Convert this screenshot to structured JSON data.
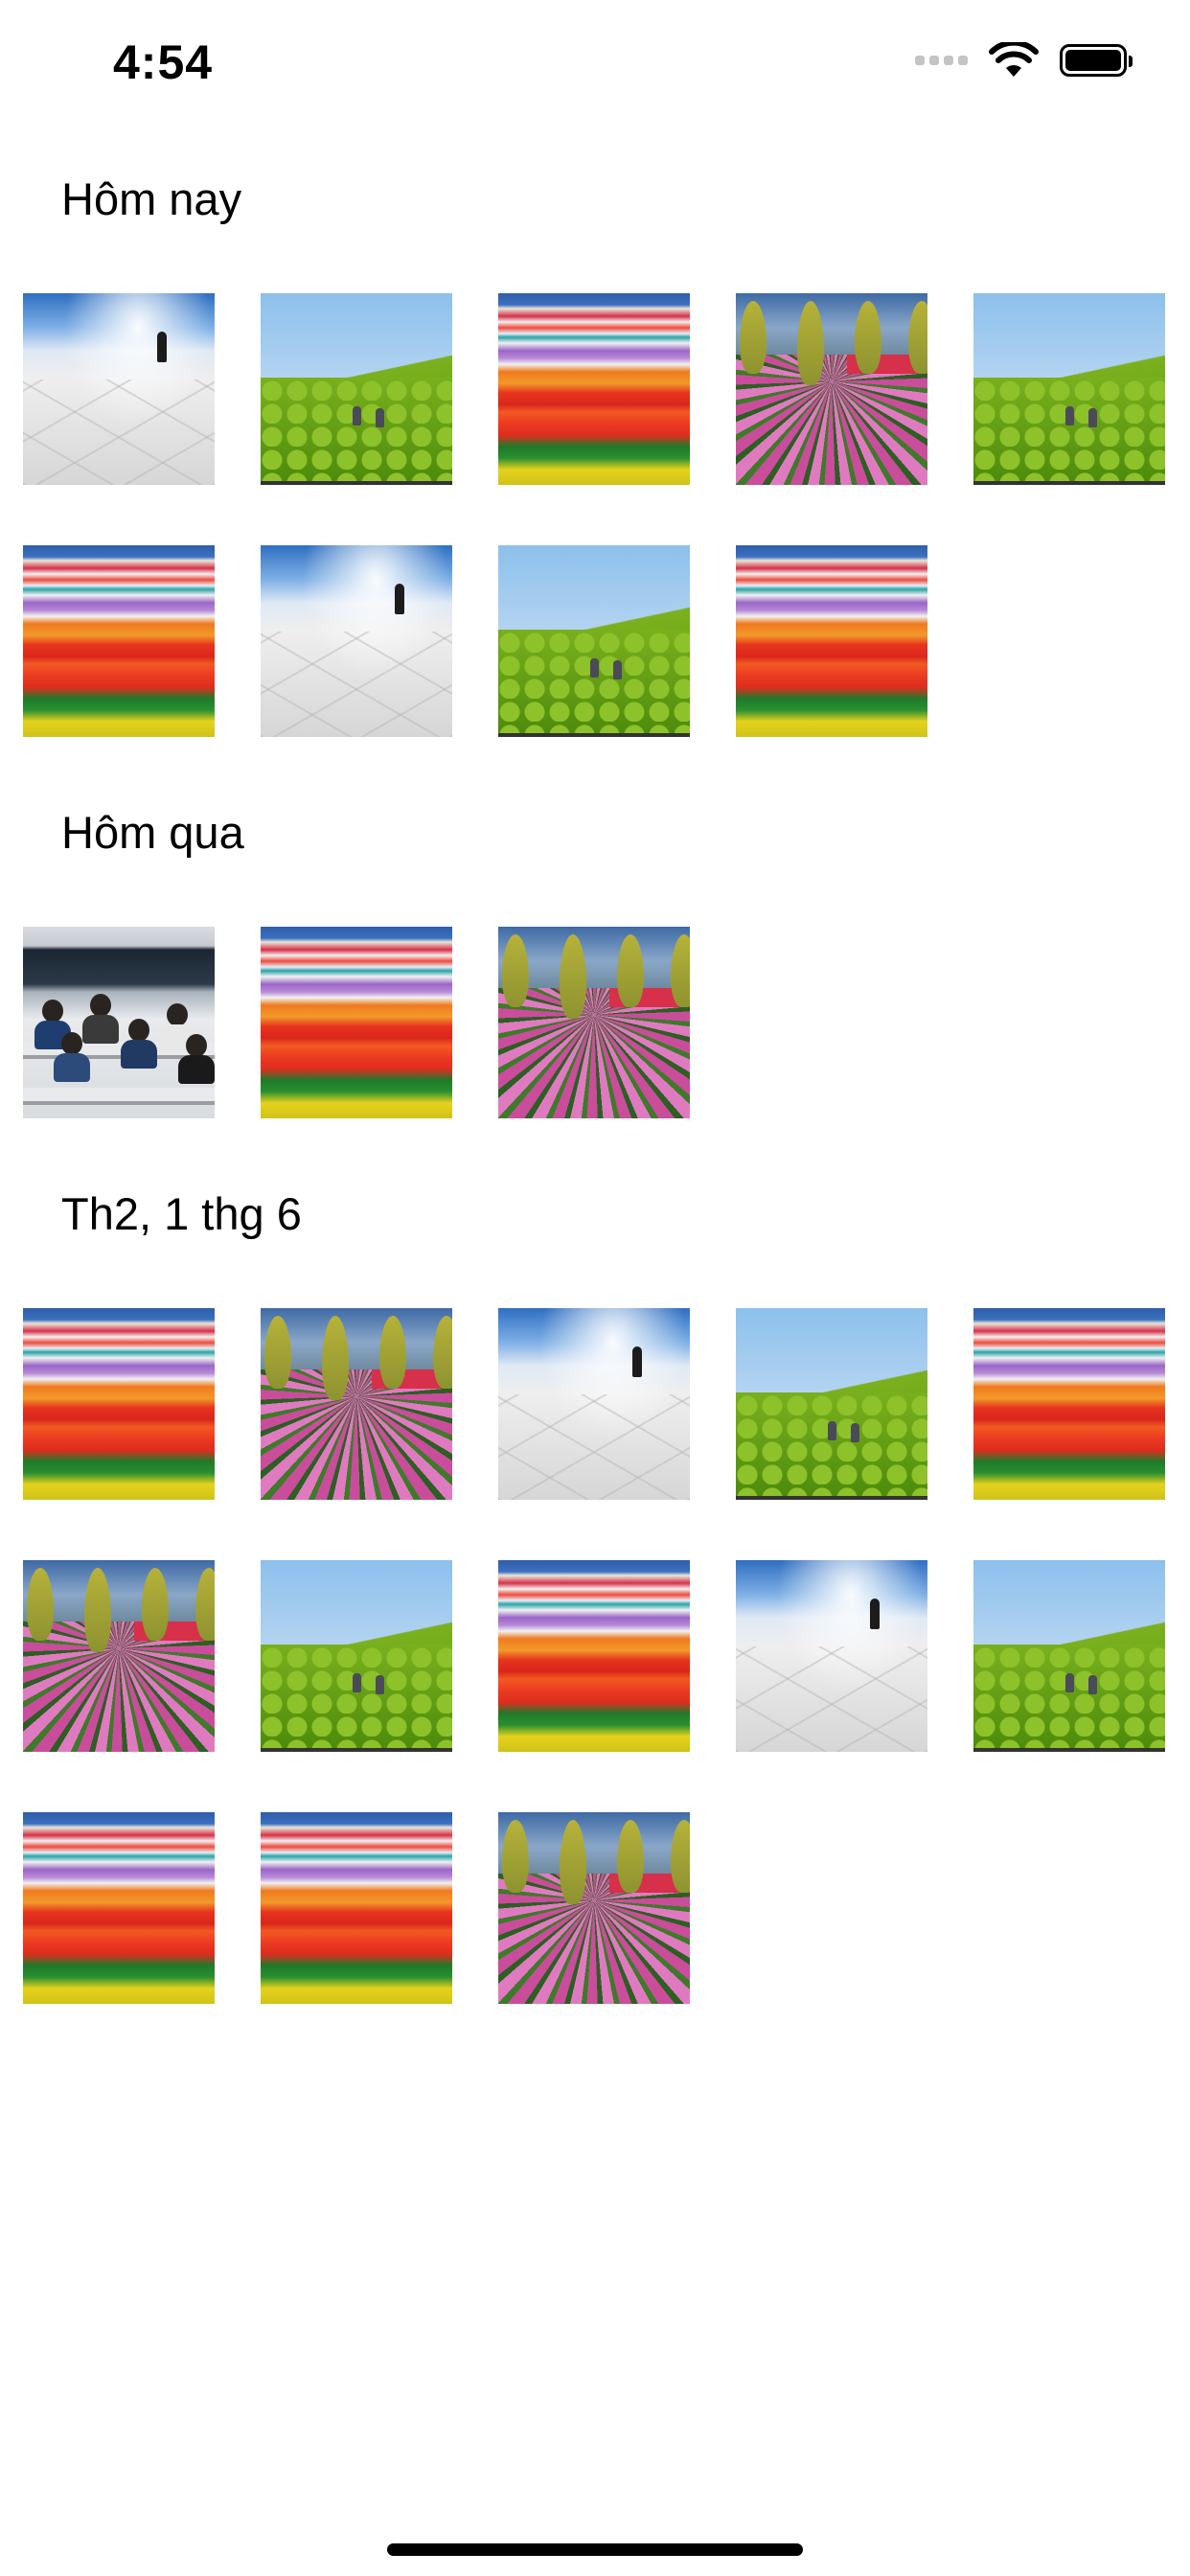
{
  "status_bar": {
    "time": "4:54",
    "icons": [
      "signal-icon",
      "wifi-icon",
      "battery-icon"
    ]
  },
  "sections": [
    {
      "title": "Hôm nay",
      "photos": [
        "salt-flat",
        "green-hill",
        "tulip-stripes",
        "tulip-avenue",
        "green-hill",
        "tulip-stripes",
        "salt-flat",
        "green-hill",
        "tulip-stripes"
      ]
    },
    {
      "title": "Hôm qua",
      "photos": [
        "classroom",
        "tulip-stripes",
        "tulip-avenue"
      ]
    },
    {
      "title": "Th2, 1 thg 6",
      "photos": [
        "tulip-stripes",
        "tulip-avenue",
        "salt-flat",
        "green-hill",
        "tulip-stripes",
        "tulip-avenue",
        "green-hill",
        "tulip-stripes",
        "salt-flat",
        "green-hill",
        "tulip-stripes",
        "tulip-stripes",
        "tulip-avenue"
      ]
    }
  ]
}
